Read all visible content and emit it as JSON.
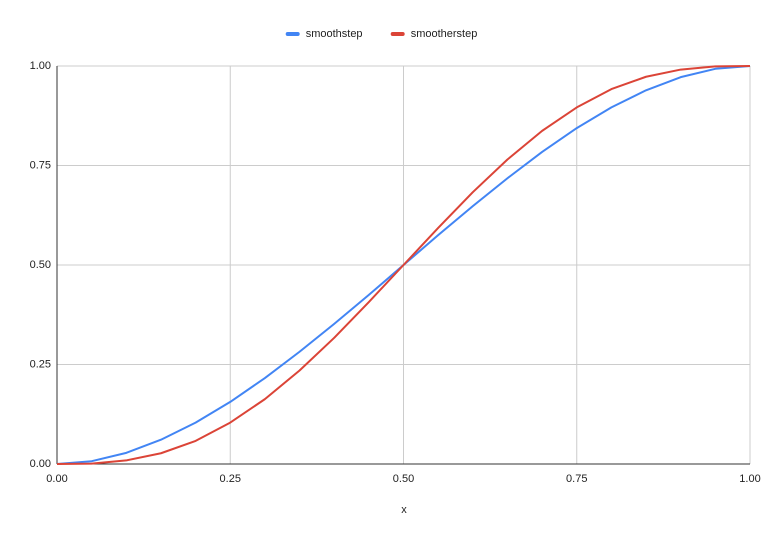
{
  "chart_data": {
    "type": "line",
    "x_label": "x",
    "x": [
      0,
      0.05,
      0.1,
      0.15,
      0.2,
      0.25,
      0.3,
      0.35,
      0.4,
      0.45,
      0.5,
      0.55,
      0.6,
      0.65,
      0.7,
      0.75,
      0.8,
      0.85,
      0.9,
      0.95,
      1
    ],
    "series": [
      {
        "name": "smoothstep",
        "color": "#4285f4",
        "values": [
          0,
          0.007,
          0.028,
          0.061,
          0.104,
          0.156,
          0.216,
          0.282,
          0.352,
          0.425,
          0.5,
          0.575,
          0.648,
          0.718,
          0.784,
          0.844,
          0.896,
          0.939,
          0.972,
          0.993,
          1
        ]
      },
      {
        "name": "smootherstep",
        "color": "#db4437",
        "values": [
          0,
          0.001,
          0.009,
          0.027,
          0.058,
          0.104,
          0.163,
          0.235,
          0.317,
          0.407,
          0.5,
          0.593,
          0.683,
          0.765,
          0.837,
          0.896,
          0.942,
          0.973,
          0.991,
          0.999,
          1
        ]
      }
    ],
    "xlim": [
      0,
      1
    ],
    "ylim": [
      0,
      1
    ],
    "xticks": [
      {
        "value": 0,
        "label": "0.00"
      },
      0.25,
      {
        "value": 0.5,
        "label": "0.50"
      },
      0.75,
      {
        "value": 1,
        "label": "1.00"
      }
    ],
    "yticks": [
      {
        "value": 0,
        "label": "0.00"
      },
      0.25,
      {
        "value": 0.5,
        "label": "0.50"
      },
      0.75,
      {
        "value": 1,
        "label": "1.00"
      }
    ],
    "grid": true,
    "legend": "top"
  }
}
